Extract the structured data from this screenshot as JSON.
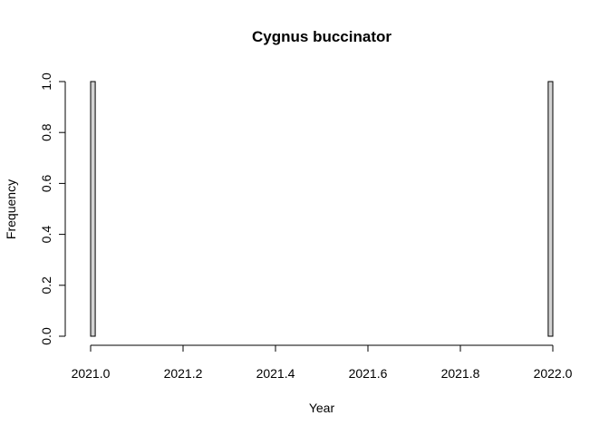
{
  "chart_data": {
    "type": "bar",
    "title": "Cygnus buccinator",
    "xlabel": "Year",
    "ylabel": "Frequency",
    "xlim": [
      2021.0,
      2022.0
    ],
    "ylim": [
      0,
      1
    ],
    "x_ticks": [
      "2021.0",
      "2021.2",
      "2021.4",
      "2021.6",
      "2021.8",
      "2022.0"
    ],
    "y_ticks": [
      "0.0",
      "0.2",
      "0.4",
      "0.6",
      "0.8",
      "1.0"
    ],
    "bin_width": 0.01,
    "bins": [
      {
        "x_start": 2021.0,
        "x_end": 2021.01,
        "count": 1
      },
      {
        "x_start": 2021.99,
        "x_end": 2022.0,
        "count": 1
      }
    ],
    "bar_color": "#d3d3d3",
    "grid": false
  }
}
